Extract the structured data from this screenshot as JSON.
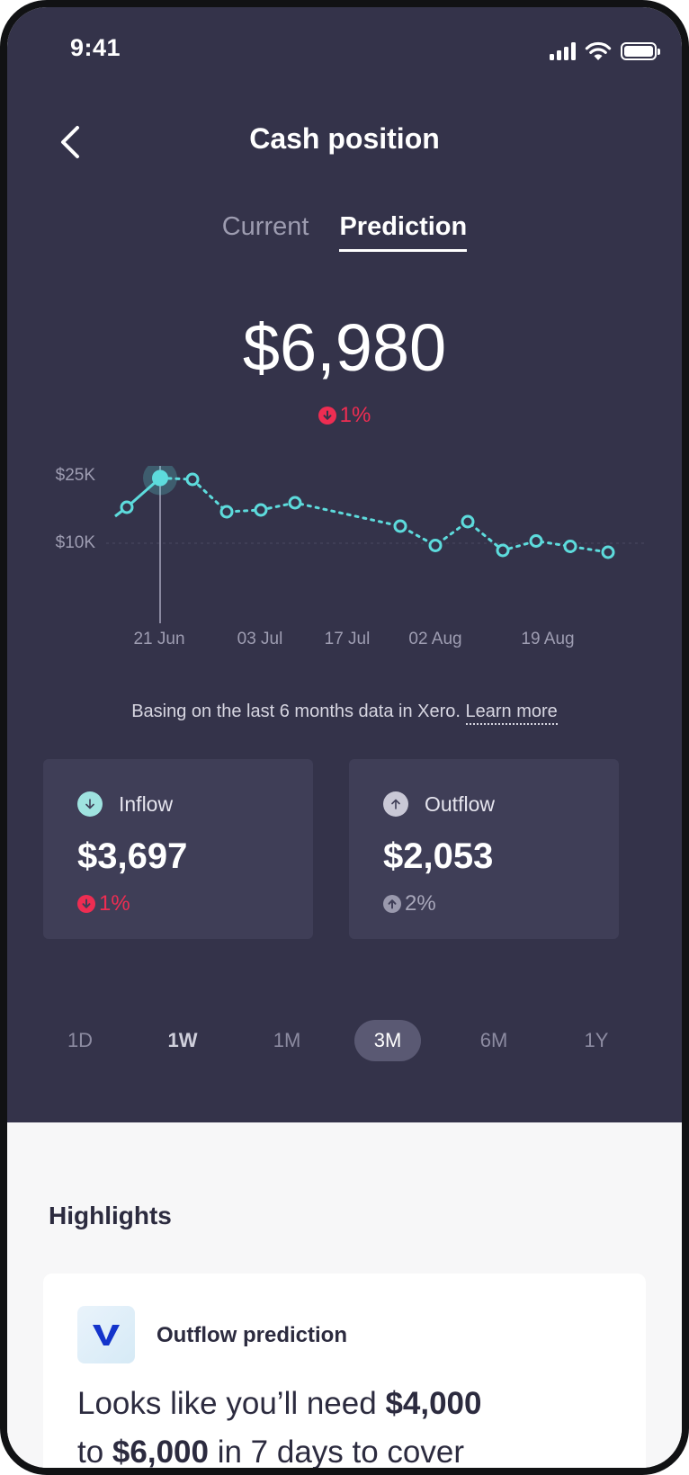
{
  "status_bar": {
    "time": "9:41"
  },
  "header": {
    "title": "Cash position"
  },
  "tabs": [
    {
      "label": "Current",
      "active": false
    },
    {
      "label": "Prediction",
      "active": true
    }
  ],
  "summary": {
    "value": "$6,980",
    "change": "1%",
    "direction": "down"
  },
  "chart_data": {
    "type": "line",
    "y_ticks": [
      "$25K",
      "$10K"
    ],
    "x_ticks": [
      "21 Jun",
      "03 Jul",
      "17 Jul",
      "02 Aug",
      "19 Aug"
    ],
    "x": [
      "14 Jun",
      "17 Jun",
      "21 Jun",
      "25 Jun",
      "29 Jun",
      "02 Jul",
      "06 Jul",
      "26 Jul",
      "31 Jul",
      "05 Aug",
      "10 Aug",
      "14 Aug",
      "18 Aug",
      "22 Aug"
    ],
    "values": [
      16000,
      18000,
      24500,
      24200,
      17000,
      17400,
      19000,
      13800,
      9500,
      14800,
      8400,
      10500,
      9300,
      8000
    ],
    "highlight_index": 2,
    "ylim": [
      0,
      28000
    ],
    "color": "#5ddbdc"
  },
  "note": {
    "text": "Basing on the last 6 months data in Xero.",
    "link": "Learn more"
  },
  "inflow": {
    "label": "Inflow",
    "value": "$3,697",
    "change": "1%",
    "direction": "down",
    "icon": "arrow-down-icon"
  },
  "outflow": {
    "label": "Outflow",
    "value": "$2,053",
    "change": "2%",
    "direction": "up",
    "icon": "arrow-up-icon"
  },
  "ranges": [
    {
      "label": "1D",
      "selected": false
    },
    {
      "label": "1W",
      "selected": false
    },
    {
      "label": "1M",
      "selected": false
    },
    {
      "label": "3M",
      "selected": true
    },
    {
      "label": "6M",
      "selected": false
    },
    {
      "label": "1Y",
      "selected": false
    }
  ],
  "highlights": {
    "title": "Highlights",
    "card": {
      "title": "Outflow prediction",
      "text_1": "Looks like you’ll need ",
      "amount_low": "$4,000",
      "text_2": "to ",
      "amount_high": "$6,000",
      "text_3": " in 7 days to cover"
    }
  },
  "colors": {
    "accent": "#5ddbdc",
    "negative": "#ee2d52",
    "background": "#34334a"
  }
}
